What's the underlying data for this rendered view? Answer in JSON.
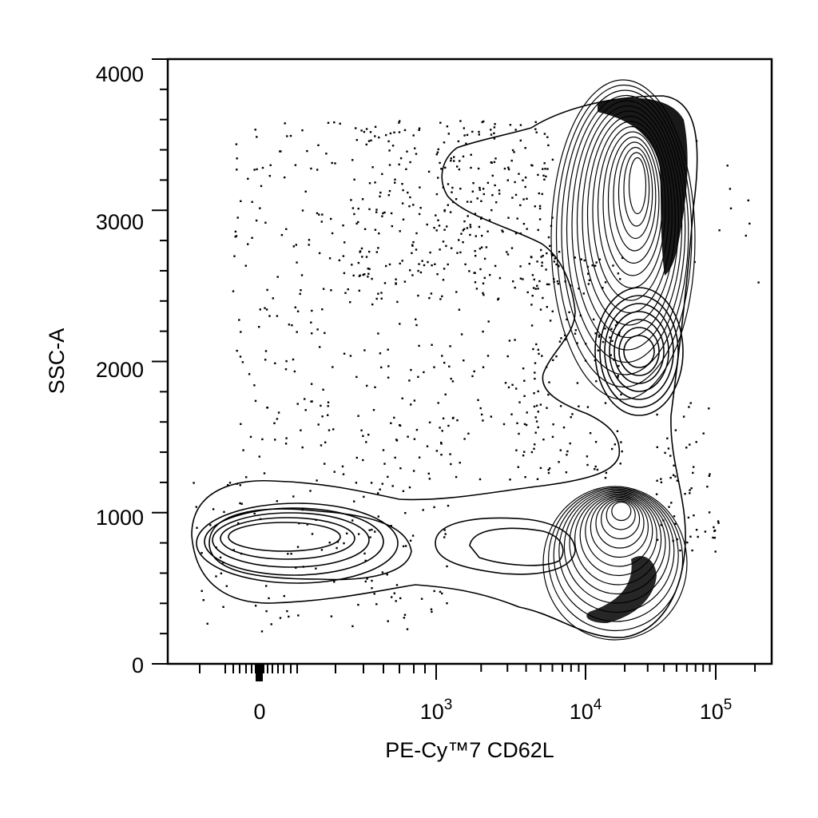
{
  "chart_data": {
    "type": "contour",
    "xlabel": "PE-Cy™7 CD62L",
    "ylabel": "SSC-A",
    "x_scale": "biexponential",
    "x_ticks": [
      {
        "value": 0,
        "label": "0"
      },
      {
        "value": 1000,
        "base": "10",
        "exp": "3"
      },
      {
        "value": 10000,
        "base": "10",
        "exp": "4"
      },
      {
        "value": 100000,
        "base": "10",
        "exp": "5"
      }
    ],
    "y_ticks": [
      "0",
      "1000",
      "2000",
      "3000",
      "4000"
    ],
    "ylim": [
      0,
      4000
    ],
    "grid": false,
    "populations": [
      {
        "name": "",
        "center_x": 80,
        "center_y": 820
      },
      {
        "name": "",
        "center_x": 16000,
        "center_y": 600
      },
      {
        "name": "",
        "center_x": 30000,
        "center_y": 3400
      },
      {
        "name": "",
        "center_x": 28000,
        "center_y": 2100
      }
    ]
  }
}
